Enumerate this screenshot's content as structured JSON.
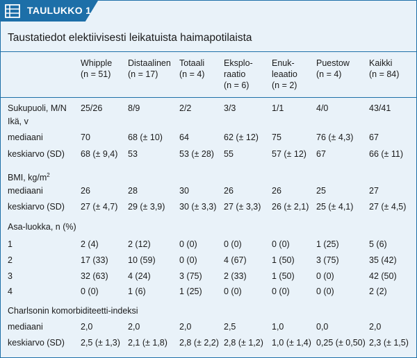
{
  "badge": {
    "label": "TAULUKKO 1."
  },
  "icon": {
    "name": "table-icon",
    "color": "#ffffff"
  },
  "colors": {
    "accent": "#1d6fa8",
    "panel": "#e9f2f9"
  },
  "table": {
    "title": "Taustatiedot elektiivisesti leikatuista haimapotilaista",
    "columns": [
      {
        "lines": [
          "Whipple",
          "(n = 51)"
        ]
      },
      {
        "lines": [
          "Distaalinen",
          "(n = 17)"
        ]
      },
      {
        "lines": [
          "Totaali",
          "(n = 4)"
        ]
      },
      {
        "lines": [
          "Eksplo-",
          "raatio",
          "(n = 6)"
        ]
      },
      {
        "lines": [
          "Enuk-",
          "leaatio",
          "(n = 2)"
        ]
      },
      {
        "lines": [
          "Puestow",
          "(n = 4)"
        ]
      },
      {
        "lines": [
          "Kaikki",
          "(n = 84)"
        ]
      }
    ],
    "rows": [
      {
        "label": "Sukupuoli, M/N",
        "values": [
          "25/26",
          "8/9",
          "2/2",
          "3/3",
          "1/1",
          "4/0",
          "43/41"
        ]
      },
      {
        "label": "Ikä, v",
        "values": []
      },
      {
        "label": "mediaani",
        "values": [
          "70",
          "68 (± 10)",
          "64",
          "62 (± 12)",
          "75",
          "76 (± 4,3)",
          "67"
        ]
      },
      {
        "label": "keskiarvo (SD)",
        "values": [
          "68 (± 9,4)",
          "53",
          "53 (± 28)",
          "55",
          "57 (± 12)",
          "67",
          "66 (± 11)"
        ]
      },
      {
        "label": "BMI, kg/m",
        "sup": "2",
        "values": []
      },
      {
        "label": "mediaani",
        "values": [
          "26",
          "28",
          "30",
          "26",
          "26",
          "25",
          "27"
        ]
      },
      {
        "label": "keskiarvo (SD)",
        "values": [
          "27 (± 4,7)",
          "29 (± 3,9)",
          "30 (± 3,3)",
          "27 (± 3,3)",
          "26 (± 2,1)",
          "25 (± 4,1)",
          "27 (± 4,5)"
        ]
      },
      {
        "label": "Asa-luokka, n (%)",
        "values": []
      },
      {
        "label": "1",
        "values": [
          "2 (4)",
          "2 (12)",
          "0 (0)",
          "0 (0)",
          "0 (0)",
          "1 (25)",
          "5 (6)"
        ]
      },
      {
        "label": "2",
        "values": [
          "17 (33)",
          "10 (59)",
          "0 (0)",
          "4 (67)",
          "1 (50)",
          "3 (75)",
          "35 (42)"
        ]
      },
      {
        "label": "3",
        "values": [
          "32 (63)",
          "4 (24)",
          "3 (75)",
          "2 (33)",
          "1 (50)",
          "0 (0)",
          "42 (50)"
        ]
      },
      {
        "label": "4",
        "values": [
          "0 (0)",
          "1 (6)",
          "1 (25)",
          "0 (0)",
          "0 (0)",
          "0 (0)",
          "2 (2)"
        ]
      },
      {
        "label": "Charlsonin komorbiditeetti-indeksi",
        "values": []
      },
      {
        "label": "mediaani",
        "values": [
          "2,0",
          "2,0",
          "2,0",
          "2,5",
          "1,0",
          "0,0",
          "2,0"
        ]
      },
      {
        "label": "keskiarvo (SD)",
        "values": [
          "2,5 (± 1,3)",
          "2,1 (± 1,8)",
          "2,8 (± 2,2)",
          "2,8 (± 1,2)",
          "1,0 (± 1,4)",
          "0,25 (± 0,50)",
          "2,3 (± 1,5)"
        ]
      }
    ]
  }
}
